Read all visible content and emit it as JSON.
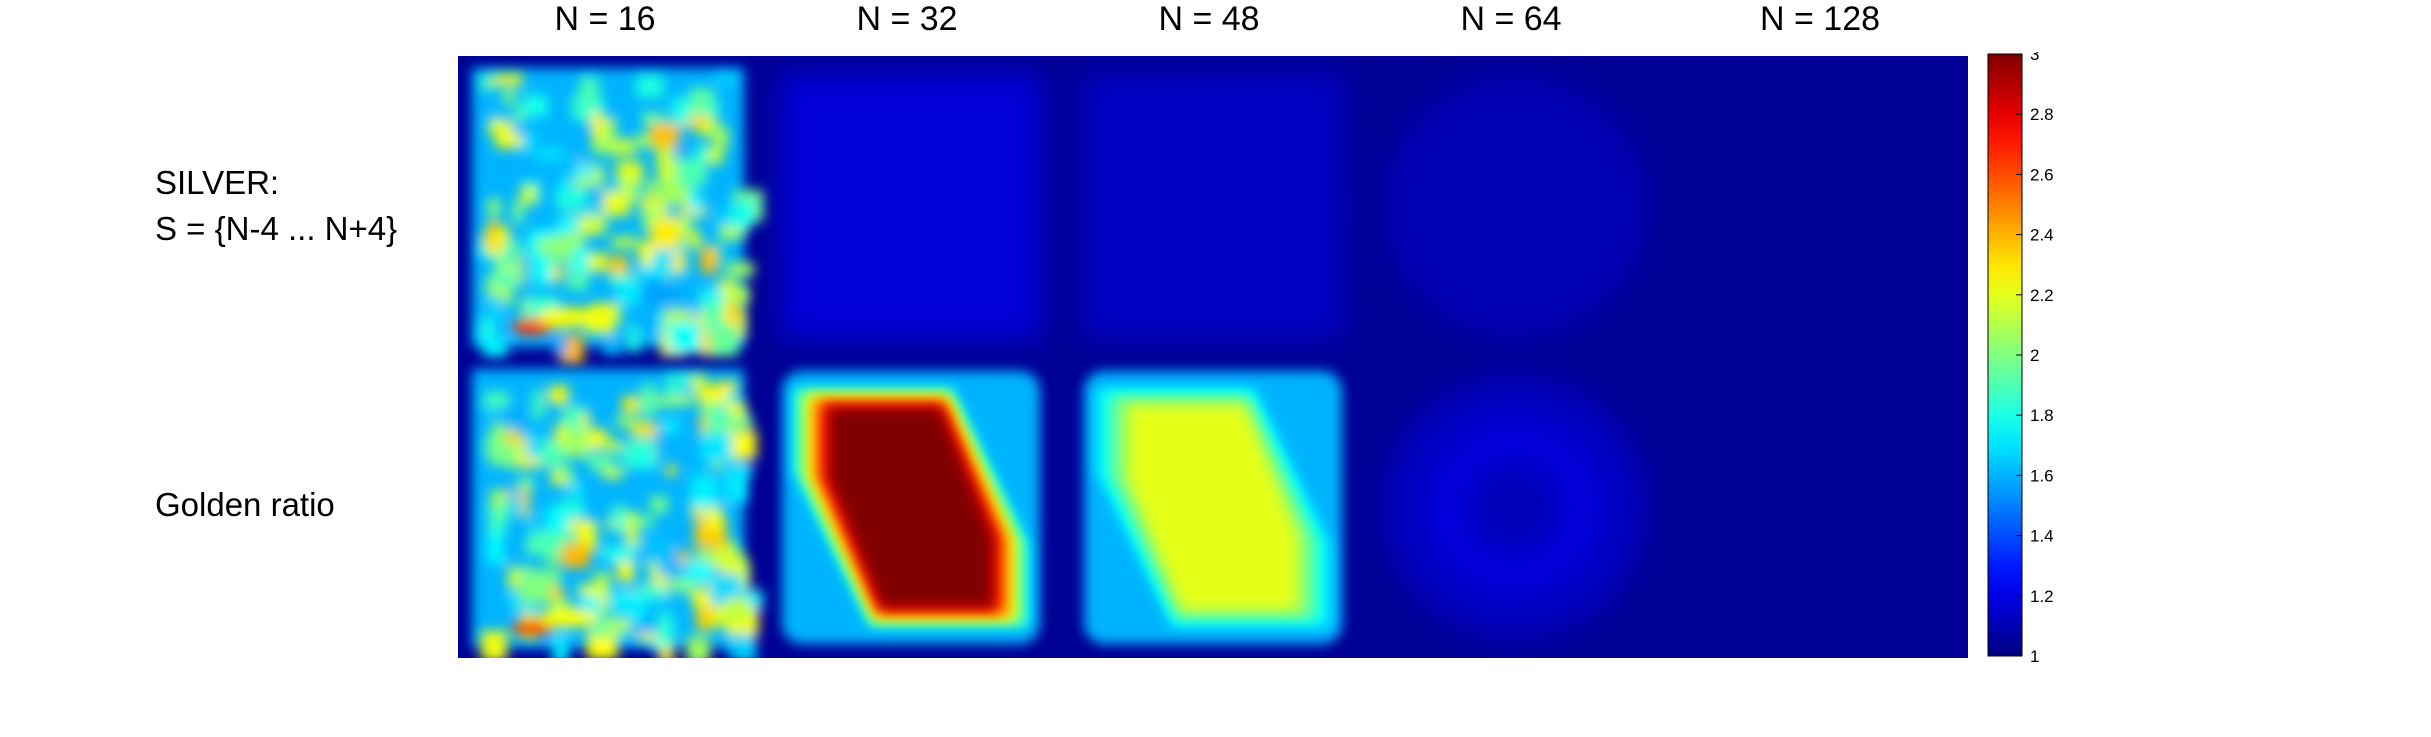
{
  "chart_data": {
    "type": "heatmap",
    "columns": [
      "N = 16",
      "N = 32",
      "N = 48",
      "N = 64",
      "N = 128"
    ],
    "rows": [
      {
        "label_lines": [
          "SILVER:",
          "S = {N-4 ... N+4}"
        ]
      },
      {
        "label_lines": [
          "Golden ratio"
        ]
      }
    ],
    "colorbar": {
      "min": 1,
      "max": 3,
      "ticks": [
        "1",
        "1.2",
        "1.4",
        "1.6",
        "1.8",
        "2",
        "2.2",
        "2.4",
        "2.6",
        "2.8",
        "3"
      ],
      "colormap": "jet"
    },
    "cells": [
      [
        {
          "pattern": "noisy",
          "level": 1.75
        },
        {
          "pattern": "faint-square",
          "level": 1.15
        },
        {
          "pattern": "faint-square",
          "level": 1.1
        },
        {
          "pattern": "faint-disc",
          "level": 1.07
        },
        {
          "pattern": "flat",
          "level": 1.0
        }
      ],
      [
        {
          "pattern": "noisy",
          "level": 1.75
        },
        {
          "pattern": "diamond",
          "level": 3.0
        },
        {
          "pattern": "diamond",
          "level": 2.2
        },
        {
          "pattern": "disc",
          "level": 1.2
        },
        {
          "pattern": "flat",
          "level": 1.0
        }
      ]
    ]
  }
}
